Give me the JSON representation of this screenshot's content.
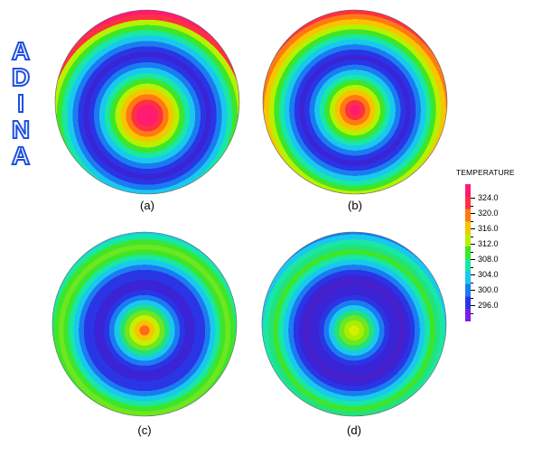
{
  "logo": {
    "letters": [
      "A",
      "D",
      "I",
      "N",
      "A"
    ],
    "color": "#1f4fe0"
  },
  "panels": [
    {
      "caption": "(a)",
      "colors": [
        "#ff1a72",
        "#ff1a72",
        "#ff3044",
        "#ff7a10",
        "#f7c400",
        "#b9f000",
        "#3de62a",
        "#19e7a5",
        "#19c8ee",
        "#1a7cf0",
        "#2a35e6",
        "#3a24d6",
        "#2a35e6",
        "#1a7cf0",
        "#19c8ee",
        "#19e7a5",
        "#3de62a",
        "#b9f000",
        "#ff3044",
        "#ff1a72"
      ]
    },
    {
      "caption": "(b)",
      "colors": [
        "#ff1a72",
        "#ff3044",
        "#ff7a10",
        "#f7c400",
        "#b9f000",
        "#3de62a",
        "#19e7a5",
        "#19c8ee",
        "#1a7cf0",
        "#2a35e6",
        "#3a24d6",
        "#2a35e6",
        "#1a7cf0",
        "#19c8ee",
        "#19e7a5",
        "#3de62a",
        "#b9f000",
        "#f7c400",
        "#ff7a10",
        "#ff3044"
      ]
    },
    {
      "caption": "(c)",
      "colors": [
        "#ff6a18",
        "#f7c400",
        "#c8ee00",
        "#6ee620",
        "#22e27a",
        "#19c8ee",
        "#1a7cf0",
        "#2a35e6",
        "#3a24d6",
        "#3a24d6",
        "#2a35e6",
        "#2a35e6",
        "#1a7cf0",
        "#19c8ee",
        "#19e7a5",
        "#3de62a",
        "#6ee620",
        "#3de62a",
        "#19e7a5",
        "#19c8ee"
      ]
    },
    {
      "caption": "(d)",
      "colors": [
        "#d6f000",
        "#a8ee00",
        "#6ee620",
        "#22e27a",
        "#19c8ee",
        "#1a7cf0",
        "#2a35e6",
        "#3a24d6",
        "#3a24d6",
        "#4a1ec8",
        "#3a24d6",
        "#2a35e6",
        "#1a7cf0",
        "#19c8ee",
        "#19e7a5",
        "#3de62a",
        "#22e27a",
        "#19e7a5",
        "#19c8ee",
        "#1a7cf0"
      ]
    }
  ],
  "legend": {
    "title": "TEMPERATURE",
    "labels": [
      "324.0",
      "320.0",
      "316.0",
      "312.0",
      "308.0",
      "304.0",
      "300.0",
      "296.0"
    ],
    "colors": [
      "#ff1a72",
      "#ff3044",
      "#ff7a10",
      "#f7c400",
      "#b9f000",
      "#3de62a",
      "#19e7a5",
      "#19c8ee",
      "#1a7cf0",
      "#2a35e6",
      "#7a1ee6"
    ]
  }
}
